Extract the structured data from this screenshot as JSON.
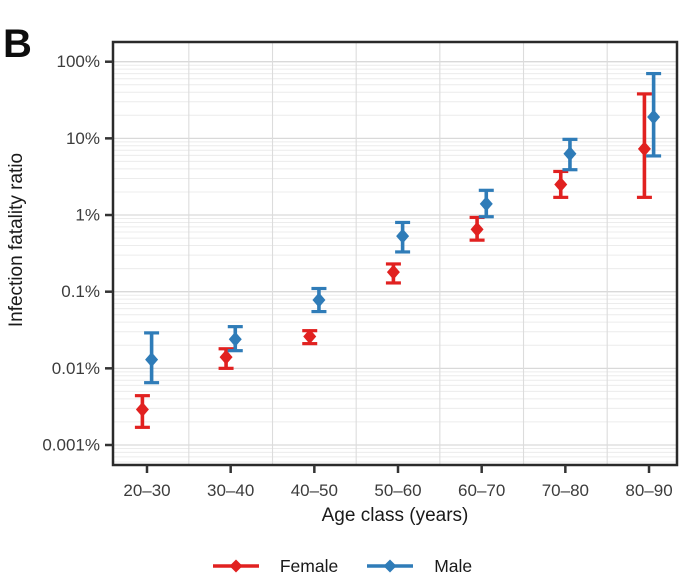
{
  "panel_label": "B",
  "chart_data": {
    "type": "scatter",
    "title": "",
    "xlabel": "Age class (years)",
    "ylabel": "Infection fatality ratio",
    "x_categories": [
      "20–30",
      "30–40",
      "40–50",
      "50–60",
      "60–70",
      "70–80",
      "80–90"
    ],
    "y_scale": "log",
    "y_unit": "percent",
    "ylim_pct": [
      0.00055,
      180
    ],
    "y_tick_values": [
      100,
      10,
      1,
      0.1,
      0.01,
      0.001
    ],
    "y_tick_labels": [
      "100%",
      "10%",
      "1%",
      "0.1%",
      "0.01%",
      "0.001%"
    ],
    "grid": true,
    "legend_position": "bottom",
    "series": [
      {
        "name": "Female",
        "color": "#e12120",
        "marker": "diamond",
        "values_pct": [
          0.0029,
          0.014,
          0.026,
          0.18,
          0.65,
          2.5,
          7.3
        ],
        "ci_lower_pct": [
          0.0017,
          0.01,
          0.021,
          0.13,
          0.47,
          1.7,
          1.7
        ],
        "ci_upper_pct": [
          0.0044,
          0.018,
          0.031,
          0.23,
          0.93,
          3.7,
          38
        ]
      },
      {
        "name": "Male",
        "color": "#2f7cb8",
        "marker": "diamond",
        "values_pct": [
          0.013,
          0.024,
          0.078,
          0.53,
          1.4,
          6.3,
          19
        ],
        "ci_lower_pct": [
          0.0065,
          0.017,
          0.055,
          0.33,
          0.95,
          3.9,
          5.9
        ],
        "ci_upper_pct": [
          0.029,
          0.035,
          0.11,
          0.8,
          2.1,
          9.7,
          70
        ]
      }
    ]
  },
  "legend": {
    "items": [
      {
        "label": "Female",
        "color": "#e12120"
      },
      {
        "label": "Male",
        "color": "#2f7cb8"
      }
    ]
  },
  "colors": {
    "female": "#e12120",
    "male": "#2f7cb8",
    "panel_border": "#2a2a2a",
    "grid_major": "#d9d9d9",
    "grid_minor": "#ececec",
    "tick_text": "#333333"
  }
}
